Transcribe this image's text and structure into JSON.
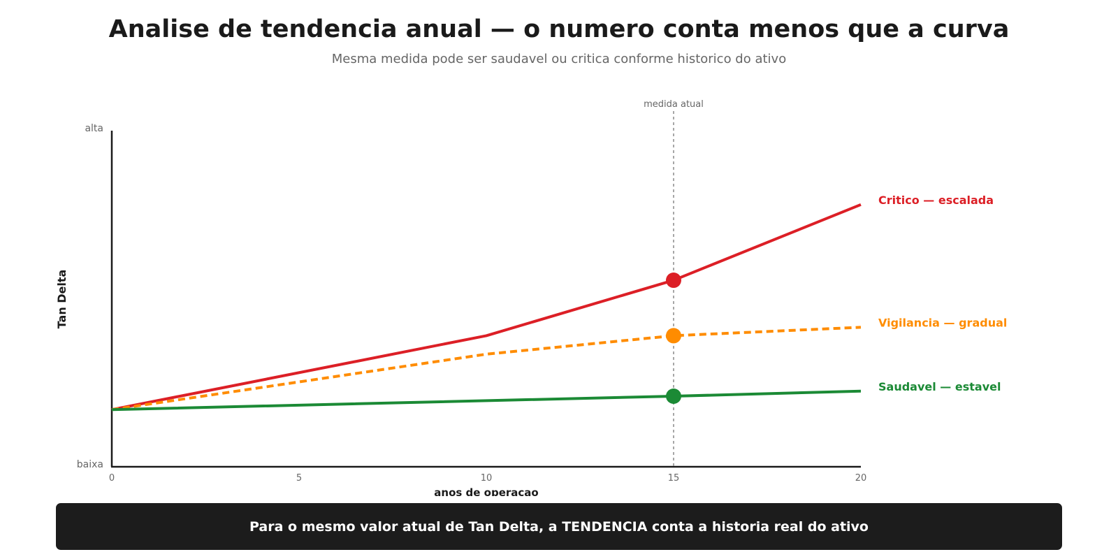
{
  "header": {
    "title": "Analise de tendencia anual — o numero conta menos que a curva",
    "subtitle": "Mesma medida pode ser saudavel ou critica conforme historico do ativo"
  },
  "footer": {
    "banner_text": "Para o mesmo valor atual de Tan Delta, a TENDENCIA conta a historia real do ativo"
  },
  "colors": {
    "critical": "#dc1f26",
    "watch": "#ff8c00",
    "healthy": "#1b8a35",
    "axis": "#1a1a1a",
    "marker_line": "#8a8a8a"
  },
  "chart_data": {
    "type": "line",
    "title": "Analise de tendencia anual — o numero conta menos que a curva",
    "subtitle": "Mesma medida pode ser saudavel ou critica conforme historico do ativo",
    "xlabel": "anos de operacao",
    "ylabel": "Tan Delta",
    "xlim": [
      0,
      20
    ],
    "ylim": [
      0,
      1
    ],
    "x_ticks": [
      0,
      5,
      10,
      15,
      20
    ],
    "y_tick_labels": {
      "low": "baixa",
      "high": "alta"
    },
    "grid": false,
    "current_marker": {
      "x": 15,
      "label": "medida atual"
    },
    "series": [
      {
        "name": "Critico — escalada",
        "color": "#dc1f26",
        "style": "solid",
        "x": [
          0,
          10,
          15,
          20
        ],
        "y": [
          0.17,
          0.39,
          0.555,
          0.78
        ]
      },
      {
        "name": "Vigilancia — gradual",
        "color": "#ff8c00",
        "style": "dashed",
        "x": [
          0,
          10,
          15,
          20
        ],
        "y": [
          0.17,
          0.335,
          0.39,
          0.415
        ]
      },
      {
        "name": "Saudavel — estavel",
        "color": "#1b8a35",
        "style": "solid",
        "x": [
          0,
          15,
          20
        ],
        "y": [
          0.17,
          0.21,
          0.225
        ]
      }
    ]
  }
}
